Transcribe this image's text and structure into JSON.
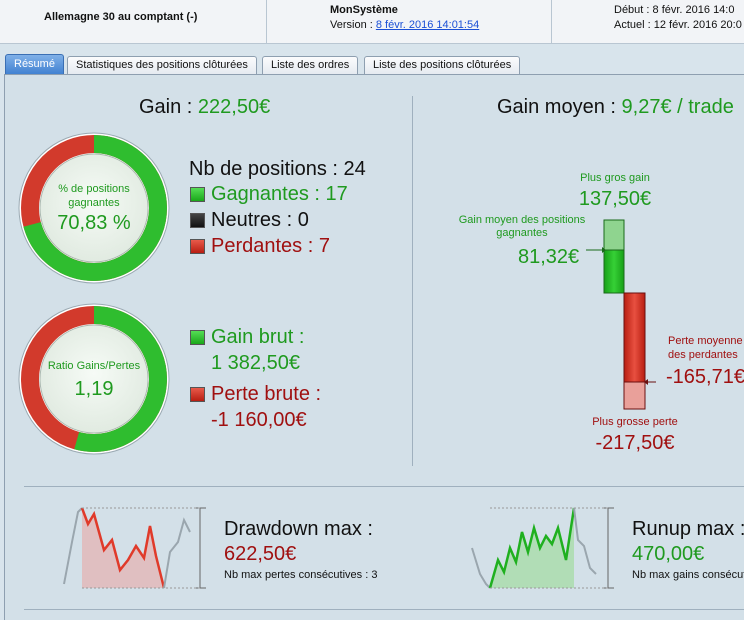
{
  "header": {
    "instrument": "Allemagne 30 au comptant (-)",
    "system_name": "MonSystème",
    "version_label": "Version : ",
    "version_link": "8 févr. 2016 14:01:54",
    "start": "Début :     8 févr. 2016 14:0",
    "now": "Actuel :   12 févr. 2016 20:0"
  },
  "tabs": [
    {
      "label": "Résumé",
      "active": true
    },
    {
      "label": "Statistiques des positions clôturées"
    },
    {
      "label": "Liste des ordres"
    },
    {
      "label": "Liste des positions clôturées"
    }
  ],
  "gain": {
    "label": "Gain : ",
    "value": "222,50€"
  },
  "gain_moyen": {
    "label": "Gain moyen : ",
    "value": "9,27€ / trade"
  },
  "donut1": {
    "caption": "% de positions gagnantes",
    "value": "70,83 %",
    "fraction": 0.7083
  },
  "donut2": {
    "caption": "Ratio Gains/Pertes",
    "value": "1,19",
    "fraction": 0.5434
  },
  "positions": {
    "total": "Nb de positions : 24",
    "winning": "Gagnantes : 17",
    "neutral": "Neutres : 0",
    "losing": "Perdantes : 7"
  },
  "gross": {
    "gain_label": "Gain brut :",
    "gain_value": "1 382,50€",
    "loss_label": "Perte brute :",
    "loss_value": "-1 160,00€"
  },
  "bars": {
    "max_gain_label": "Plus gros gain",
    "max_gain_value": "137,50€",
    "avg_gain_label": "Gain moyen des positions gagnantes",
    "avg_gain_value": "81,32€",
    "avg_loss_label": "Perte moyenne des perdantes",
    "avg_loss_value": "-165,71€",
    "max_loss_label": "Plus grosse perte",
    "max_loss_value": "-217,50€"
  },
  "drawdown": {
    "title": "Drawdown max :",
    "value": "622,50€",
    "sub": "Nb max pertes consécutives : 3"
  },
  "runup": {
    "title": "Runup max :",
    "value": "470,00€",
    "sub": "Nb max gains consécutifs"
  },
  "colors": {
    "green": "#1f9a1f",
    "red": "#a01010",
    "accent": "#3e7fd0"
  }
}
